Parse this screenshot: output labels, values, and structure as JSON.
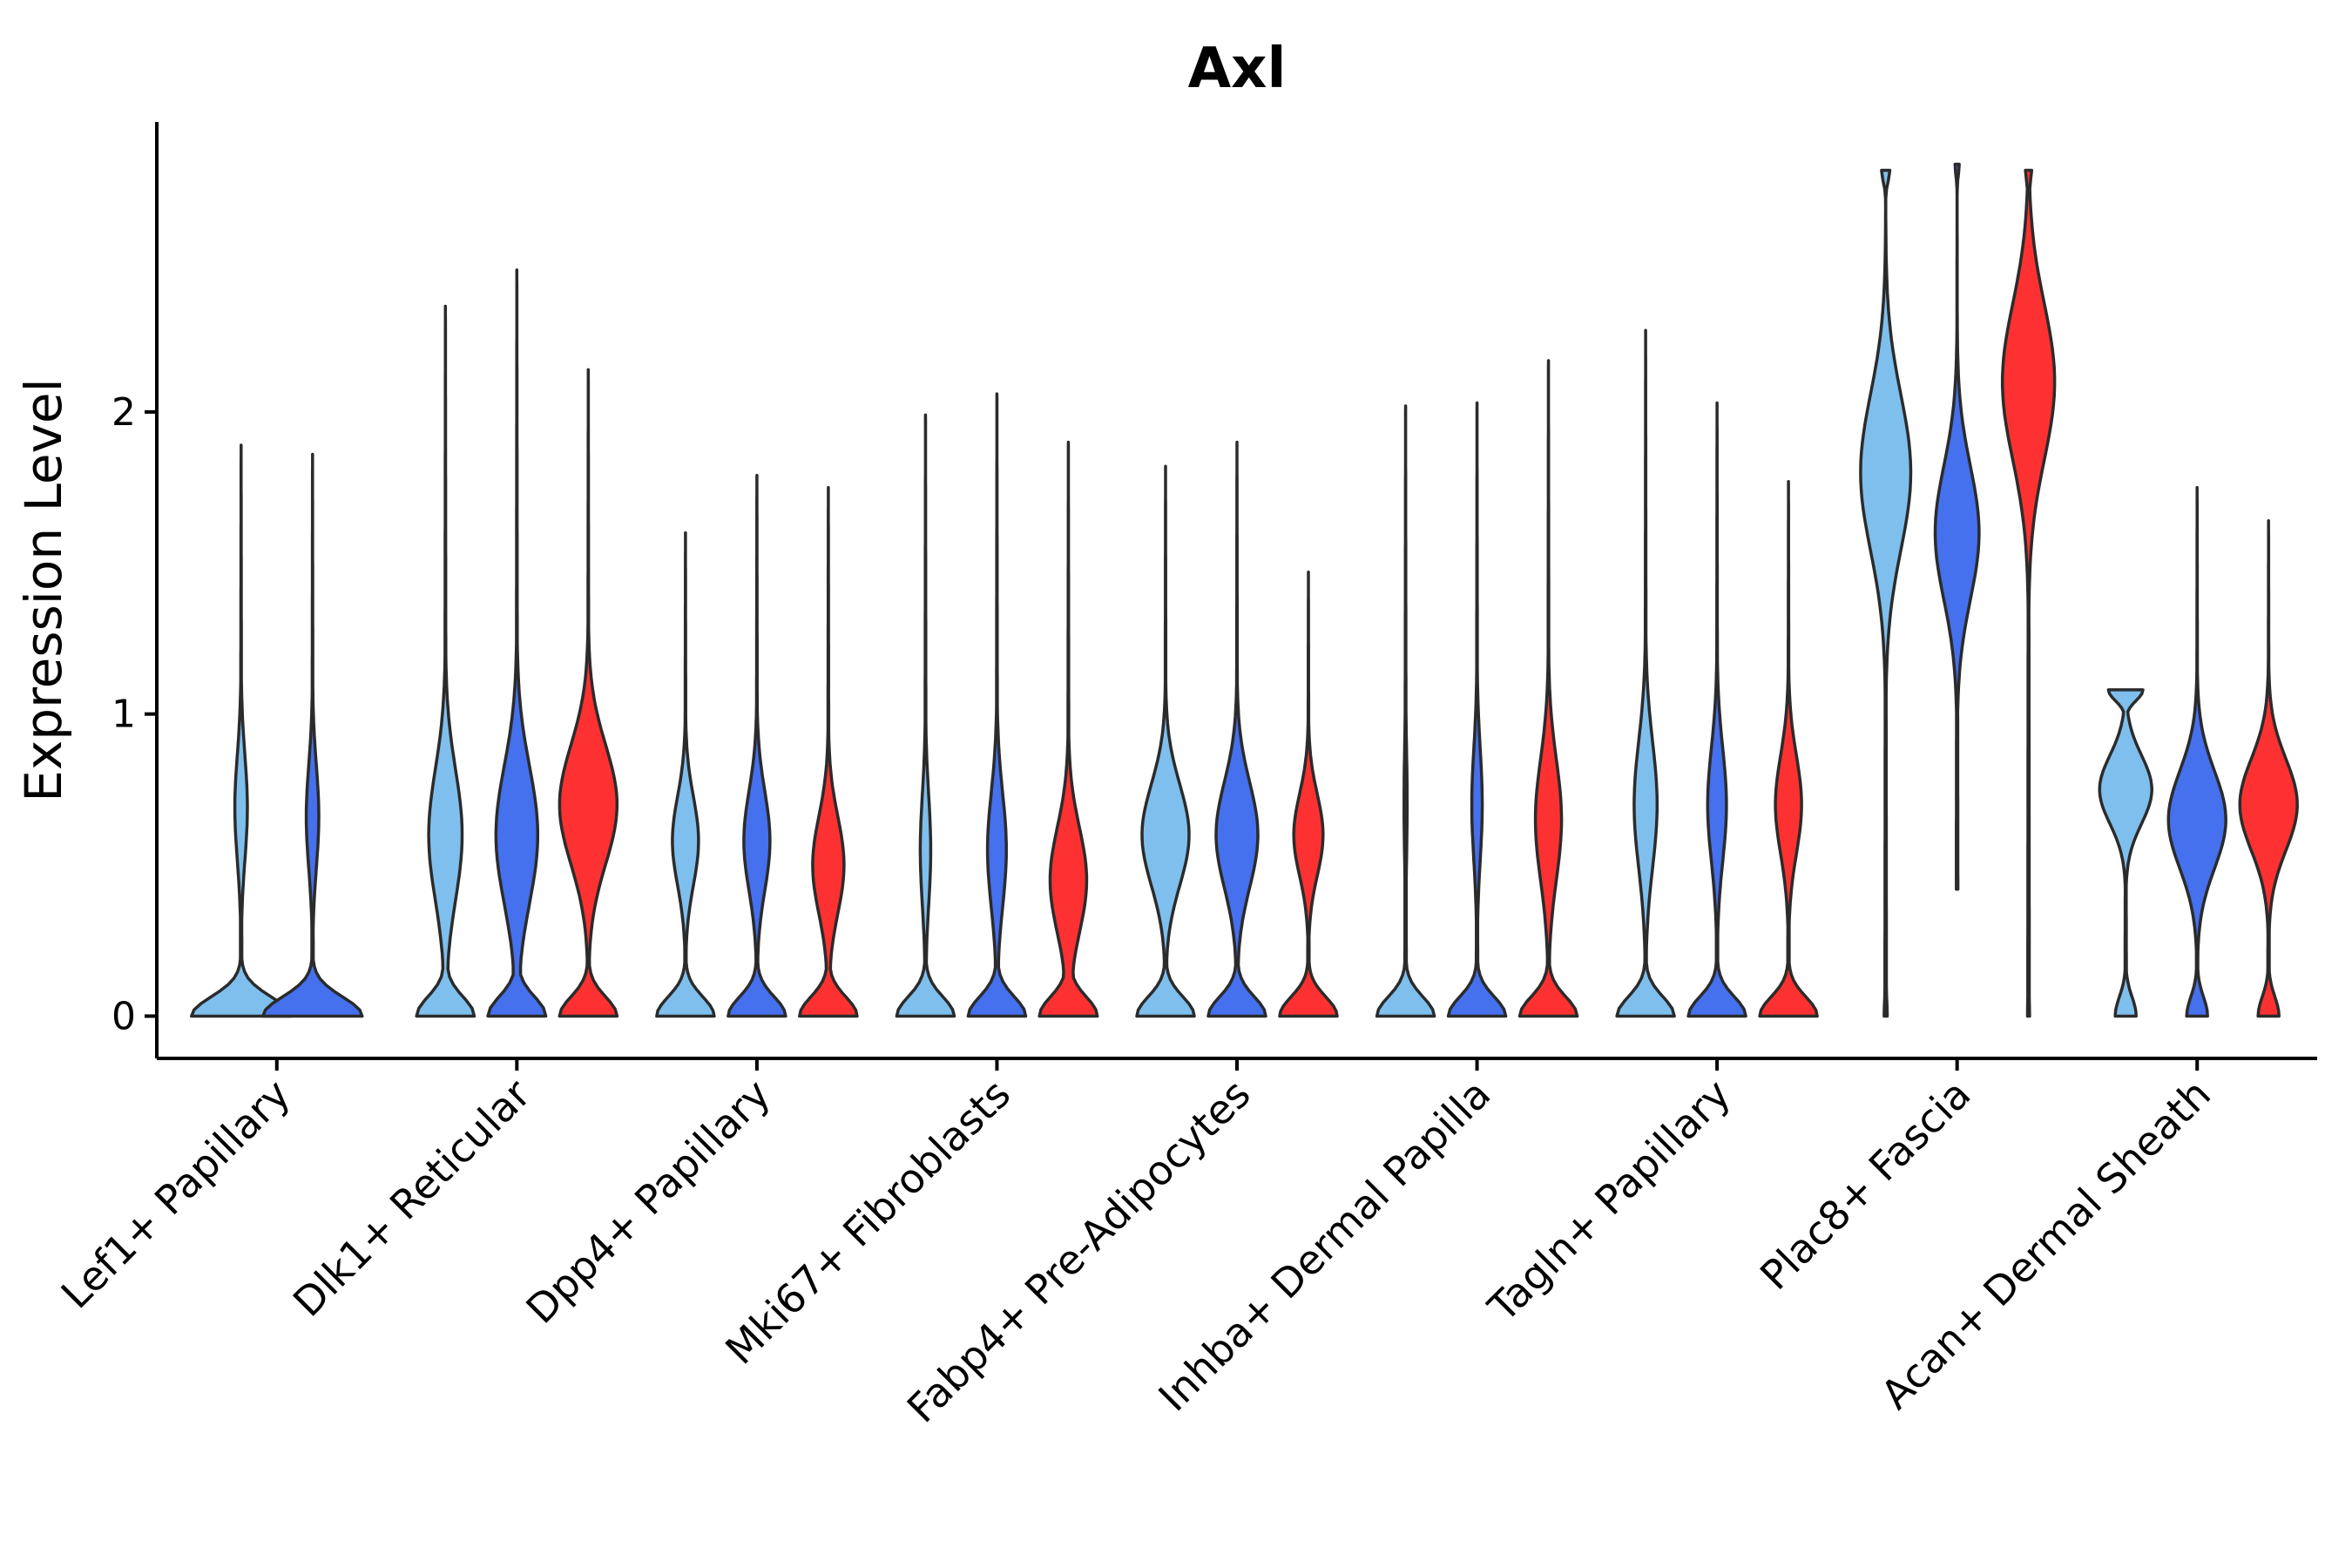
{
  "chart_data": {
    "type": "violin",
    "title": "Axl",
    "xlabel": "",
    "ylabel": "Expression Level",
    "ylim": [
      -0.14,
      2.96
    ],
    "yticks": [
      0,
      1,
      2
    ],
    "grid": false,
    "legend": "none",
    "series_colors": [
      "#7fbfed",
      "#4570ee",
      "#fd3131"
    ],
    "categories": [
      "Lef1+ Papillary",
      "Dlk1+ Reticular",
      "Dpp4+ Papillary",
      "Mki67+ Fibroblasts",
      "Fabp4+ Pre-Adipocytes",
      "Inhba+ Dermal Papilla",
      "Tagln+ Papillary",
      "Plac8+ Fascia",
      "Acan+ Dermal Sheath"
    ],
    "groups": [
      {
        "category": "Lef1+ Papillary",
        "violins": [
          {
            "series": 0,
            "min": 0,
            "max": 1.89,
            "zero_width": 0.95,
            "mode": 0.69,
            "mode_width": 0.12
          },
          {
            "series": 1,
            "min": 0,
            "max": 1.86,
            "zero_width": 0.95,
            "mode": 0.66,
            "mode_width": 0.12
          }
        ]
      },
      {
        "category": "Dlk1+ Reticular",
        "violins": [
          {
            "series": 0,
            "min": 0,
            "max": 2.35,
            "zero_width": 0.55,
            "mode": 0.6,
            "mode_width": 0.32
          },
          {
            "series": 1,
            "min": 0,
            "max": 2.47,
            "zero_width": 0.55,
            "mode": 0.6,
            "mode_width": 0.4
          },
          {
            "series": 2,
            "min": 0,
            "max": 2.14,
            "zero_width": 0.55,
            "mode": 0.7,
            "mode_width": 0.55
          }
        ]
      },
      {
        "category": "Dpp4+ Papillary",
        "violins": [
          {
            "series": 0,
            "min": 0,
            "max": 1.6,
            "zero_width": 0.55,
            "mode": 0.58,
            "mode_width": 0.25
          },
          {
            "series": 1,
            "min": 0,
            "max": 1.79,
            "zero_width": 0.55,
            "mode": 0.58,
            "mode_width": 0.25
          },
          {
            "series": 2,
            "min": 0,
            "max": 1.75,
            "zero_width": 0.55,
            "mode": 0.5,
            "mode_width": 0.3
          }
        ]
      },
      {
        "category": "Mki67+ Fibroblasts",
        "violins": [
          {
            "series": 0,
            "min": 0,
            "max": 1.99,
            "zero_width": 0.55,
            "mode": 0.55,
            "mode_width": 0.1
          },
          {
            "series": 1,
            "min": 0,
            "max": 2.06,
            "zero_width": 0.55,
            "mode": 0.55,
            "mode_width": 0.18
          },
          {
            "series": 2,
            "min": 0,
            "max": 1.9,
            "zero_width": 0.55,
            "mode": 0.45,
            "mode_width": 0.35
          }
        ]
      },
      {
        "category": "Fabp4+ Pre-Adipocytes",
        "violins": [
          {
            "series": 0,
            "min": 0,
            "max": 1.82,
            "zero_width": 0.55,
            "mode": 0.6,
            "mode_width": 0.45
          },
          {
            "series": 1,
            "min": 0,
            "max": 1.9,
            "zero_width": 0.55,
            "mode": 0.6,
            "mode_width": 0.4
          },
          {
            "series": 2,
            "min": 0,
            "max": 1.47,
            "zero_width": 0.55,
            "mode": 0.6,
            "mode_width": 0.28
          }
        ]
      },
      {
        "category": "Inhba+ Dermal Papilla",
        "violins": [
          {
            "series": 0,
            "min": 0,
            "max": 2.02,
            "zero_width": 0.55,
            "mode": 0.7,
            "mode_width": 0.03
          },
          {
            "series": 1,
            "min": 0,
            "max": 2.03,
            "zero_width": 0.55,
            "mode": 0.7,
            "mode_width": 0.1
          },
          {
            "series": 2,
            "min": 0,
            "max": 2.17,
            "zero_width": 0.55,
            "mode": 0.65,
            "mode_width": 0.25
          }
        ]
      },
      {
        "category": "Tagln+ Papillary",
        "violins": [
          {
            "series": 0,
            "min": 0,
            "max": 2.27,
            "zero_width": 0.55,
            "mode": 0.7,
            "mode_width": 0.22
          },
          {
            "series": 1,
            "min": 0,
            "max": 2.03,
            "zero_width": 0.55,
            "mode": 0.7,
            "mode_width": 0.18
          },
          {
            "series": 2,
            "min": 0,
            "max": 1.77,
            "zero_width": 0.55,
            "mode": 0.7,
            "mode_width": 0.25
          }
        ]
      },
      {
        "category": "Plac8+ Fascia",
        "violins": [
          {
            "series": 0,
            "min": 0,
            "max": 2.8,
            "zero_width": 0.03,
            "mode": 1.8,
            "mode_width": 0.48,
            "top_width": 0.08
          },
          {
            "series": 1,
            "min": 0.42,
            "max": 2.82,
            "zero_width": 0.02,
            "mode": 1.6,
            "mode_width": 0.42,
            "top_width": 0.04
          },
          {
            "series": 2,
            "min": 0,
            "max": 2.8,
            "zero_width": 0.02,
            "mode": 2.1,
            "mode_width": 0.5,
            "top_width": 0.06
          }
        ]
      },
      {
        "category": "Acan+ Dermal Sheath",
        "violins": [
          {
            "series": 0,
            "min": 0,
            "max": 1.08,
            "zero_width": 0.2,
            "mode": 0.75,
            "mode_width": 0.5,
            "top_width": 0.33
          },
          {
            "series": 1,
            "min": 0,
            "max": 1.75,
            "zero_width": 0.2,
            "mode": 0.65,
            "mode_width": 0.55
          },
          {
            "series": 2,
            "min": 0,
            "max": 1.64,
            "zero_width": 0.2,
            "mode": 0.7,
            "mode_width": 0.55
          }
        ]
      }
    ]
  }
}
